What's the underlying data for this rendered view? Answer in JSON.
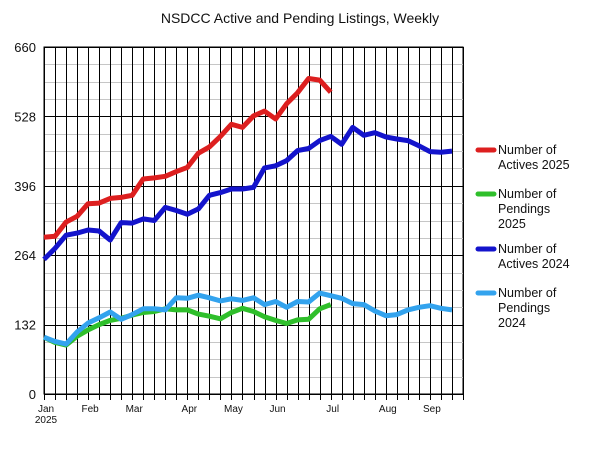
{
  "chart_data": {
    "type": "line",
    "title": "NSDCC Active and Pending Listings, Weekly",
    "xlabel": "",
    "ylabel": "",
    "ylim": [
      0,
      660
    ],
    "yticks": [
      0,
      132,
      264,
      396,
      528,
      660
    ],
    "grid": true,
    "legend_position": "right",
    "x_label_week": [
      "Jan 2025",
      "Feb",
      "Mar",
      "Apr",
      "May",
      "Jun",
      "Jul",
      "Aug",
      "Sep"
    ],
    "x_label_rows": [
      [
        0,
        "Jan"
      ],
      [
        0,
        "2025"
      ],
      [
        4,
        "Feb"
      ],
      [
        8,
        "Mar"
      ],
      [
        13,
        "Apr"
      ],
      [
        17,
        "May"
      ],
      [
        21,
        "Jun"
      ],
      [
        26,
        "Jul"
      ],
      [
        31,
        "Aug"
      ],
      [
        35,
        "Sep"
      ]
    ],
    "x_label_two_line": [
      0
    ],
    "weeks": 39,
    "series": [
      {
        "name": "Number of Actives 2025",
        "legend_lines": [
          "Number of",
          "Actives 2025"
        ],
        "color": "#dd1f1f",
        "values": [
          298,
          300,
          327,
          338,
          362,
          363,
          372,
          374,
          378,
          409,
          411,
          414,
          423,
          431,
          458,
          470,
          490,
          513,
          507,
          529,
          538,
          523,
          552,
          573,
          600,
          597,
          574
        ]
      },
      {
        "name": "Number of Pendings 2025",
        "legend_lines": [
          "Number of",
          "Pendings",
          "2025"
        ],
        "color": "#2fbf2b",
        "values": [
          108,
          98,
          93,
          110,
          122,
          132,
          140,
          144,
          150,
          155,
          157,
          162,
          160,
          160,
          152,
          148,
          143,
          155,
          163,
          157,
          147,
          140,
          134,
          141,
          142,
          162,
          170
        ]
      },
      {
        "name": "Number of Actives 2024",
        "legend_lines": [
          "Number of",
          "Actives 2024"
        ],
        "color": "#1414cc",
        "values": [
          256,
          277,
          302,
          306,
          312,
          310,
          293,
          326,
          325,
          333,
          330,
          355,
          349,
          342,
          352,
          378,
          383,
          390,
          390,
          393,
          430,
          434,
          444,
          463,
          467,
          482,
          490,
          475,
          507,
          492,
          497,
          489,
          485,
          482,
          472,
          461,
          460,
          462
        ]
      },
      {
        "name": "Number of Pendings 2024",
        "legend_lines": [
          "Number of",
          "Pendings",
          "2024"
        ],
        "color": "#33a3ee",
        "values": [
          108,
          100,
          95,
          118,
          135,
          145,
          156,
          142,
          151,
          162,
          162,
          160,
          183,
          182,
          188,
          183,
          177,
          181,
          178,
          183,
          170,
          176,
          165,
          176,
          175,
          192,
          187,
          182,
          172,
          170,
          158,
          149,
          151,
          160,
          165,
          168,
          163,
          160
        ]
      }
    ]
  }
}
